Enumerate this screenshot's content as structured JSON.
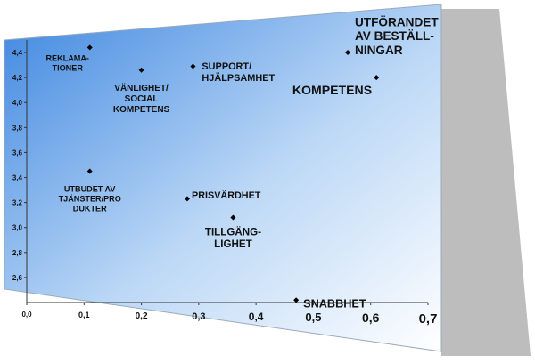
{
  "chart_data": {
    "type": "scatter",
    "points": [
      {
        "label": [
          "REKLAMA-",
          "TIONER"
        ],
        "x": 0.11,
        "y": 4.44
      },
      {
        "label": [
          "VÄNLIGHET/",
          "SOCIAL",
          "KOMPETENS"
        ],
        "x": 0.2,
        "y": 4.26
      },
      {
        "label": [
          "SUPPORT/",
          "HJÄLPSAMHET"
        ],
        "x": 0.29,
        "y": 4.29
      },
      {
        "label": [
          "UTFÖRANDET",
          "AV BESTÄLL-",
          "NINGAR"
        ],
        "x": 0.56,
        "y": 4.4
      },
      {
        "label": [
          "KOMPETENS"
        ],
        "x": 0.61,
        "y": 4.2
      },
      {
        "label": [
          "UTBUDET AV",
          "TJÄNSTER/PRO",
          "DUKTER"
        ],
        "x": 0.11,
        "y": 3.45
      },
      {
        "label": [
          "PRISVÄRDHET"
        ],
        "x": 0.28,
        "y": 3.23
      },
      {
        "label": [
          "TILLGÄNG-",
          "LIGHET"
        ],
        "x": 0.36,
        "y": 3.08
      },
      {
        "label": [
          "SNABBHET"
        ],
        "x": 0.47,
        "y": 2.42
      }
    ],
    "color": "#000000",
    "xlim": [
      0,
      0.7
    ],
    "ylim": [
      2.4,
      4.5
    ],
    "xticks": [
      {
        "value": 0,
        "label": "0,0"
      },
      {
        "value": 0.1,
        "label": "0,1"
      },
      {
        "value": 0.2,
        "label": "0,2"
      },
      {
        "value": 0.3,
        "label": "0,3"
      },
      {
        "value": 0.4,
        "label": "0,4"
      },
      {
        "value": 0.5,
        "label": "0,5"
      },
      {
        "value": 0.6,
        "label": "0,6"
      },
      {
        "value": 0.7,
        "label": "0,7"
      }
    ],
    "yticks": [
      {
        "value": 2.6,
        "label": "2,6"
      },
      {
        "value": 2.8,
        "label": "2,8"
      },
      {
        "value": 3.0,
        "label": "3,0"
      },
      {
        "value": 3.2,
        "label": "3,2"
      },
      {
        "value": 3.4,
        "label": "3,4"
      },
      {
        "value": 3.6,
        "label": "3,6"
      },
      {
        "value": 3.8,
        "label": "3,8"
      },
      {
        "value": 4.0,
        "label": "4,0"
      },
      {
        "value": 4.2,
        "label": "4,2"
      },
      {
        "value": 4.4,
        "label": "4,4"
      }
    ]
  }
}
